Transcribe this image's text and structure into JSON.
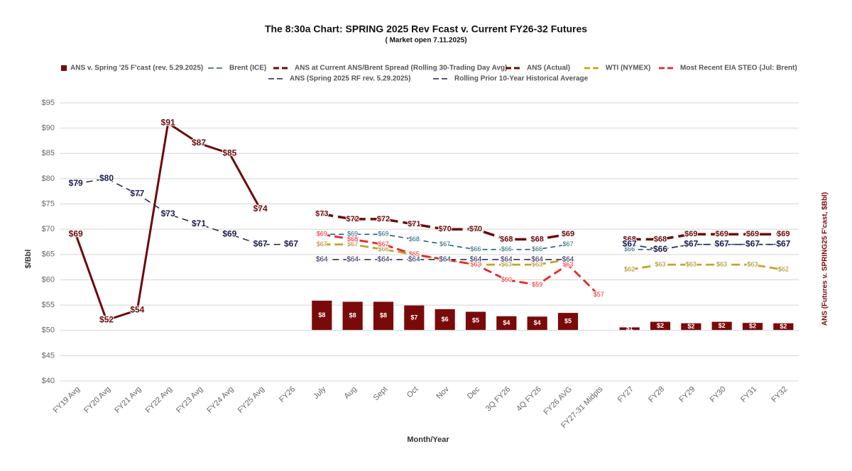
{
  "chart_data": {
    "type": "combo",
    "title": "The 8:30a Chart: SPRING 2025 Rev Fcast v. Current FY26-32 Futures",
    "subtitle": "( Market open 7.11.2025)",
    "x_label": "Month/Year",
    "y_label": "$/Bbl",
    "y2_label": "ANS (Futures v. SPRING25 F'cast, $Bbl)",
    "categories": [
      "FY19 Avg",
      "FY20 Avg",
      "FY21 Avg",
      "FY22 Avg",
      "FY23 Avg",
      "FY24 Avg",
      "FY25 Avg",
      "FY26",
      "July",
      "Aug",
      "Sept",
      "Oct",
      "Nov",
      "Dec",
      "3Q FY26",
      "4Q FY26",
      "FY26 AVG",
      "FY27-31 Midpts",
      "FY27",
      "FY28",
      "FY29",
      "FY30",
      "FY31",
      "FY32"
    ],
    "ylim": [
      40,
      95
    ],
    "yticks": [
      {
        "value": 40,
        "label": "$40"
      },
      {
        "value": 45,
        "label": "$45"
      },
      {
        "value": 50,
        "label": "$50"
      },
      {
        "value": 55,
        "label": "$55"
      },
      {
        "value": 60,
        "label": "$60"
      },
      {
        "value": 65,
        "label": "$65"
      },
      {
        "value": 70,
        "label": "$70"
      },
      {
        "value": 75,
        "label": "$75"
      },
      {
        "value": 80,
        "label": "$80"
      },
      {
        "value": 85,
        "label": "$85"
      },
      {
        "value": 90,
        "label": "$90"
      },
      {
        "value": 95,
        "label": "$95"
      }
    ],
    "y2lim": [
      -13.75,
      61.25
    ],
    "grid": true,
    "legend": "top",
    "series": [
      {
        "name": "ANS v. Spring '25 F'cast (rev. 5.29.2025)",
        "type": "bar",
        "axis": "y2",
        "color": "#7a0a0a",
        "values": [
          null,
          null,
          null,
          null,
          null,
          null,
          null,
          null,
          7.9,
          7.6,
          7.6,
          6.6,
          5.6,
          4.9,
          3.7,
          3.6,
          4.6,
          null,
          0.7,
          2.2,
          1.8,
          2.2,
          1.9,
          1.8
        ],
        "value_labels": [
          null,
          null,
          null,
          null,
          null,
          null,
          null,
          null,
          "$8",
          "$8",
          "$8",
          "$7",
          "$6",
          "$5",
          "$4",
          "$4",
          "$5",
          null,
          "$1",
          "$2",
          "$2",
          "$2",
          "$2",
          "$2"
        ]
      },
      {
        "name": "Brent (ICE)",
        "type": "line",
        "dashed": true,
        "color": "#1f5f7a",
        "values": [
          null,
          null,
          null,
          null,
          null,
          null,
          null,
          null,
          69,
          69,
          69,
          68,
          67,
          66,
          66,
          66,
          67,
          null,
          66,
          66,
          67,
          67,
          67,
          67
        ],
        "value_labels": [
          null,
          null,
          null,
          null,
          null,
          null,
          null,
          null,
          "$69",
          "$69",
          "$69",
          "$68",
          "$67",
          "$66",
          "$66",
          "$66",
          "$67",
          null,
          "$66",
          "$66",
          "$67",
          "$67",
          "$67",
          "$67"
        ]
      },
      {
        "name": "ANS at Current ANS/Brent Spread (Rolling 30-Trading Day Avg)",
        "type": "line",
        "dashed": true,
        "color": "#6b0a0a",
        "values": [
          null,
          null,
          null,
          null,
          null,
          null,
          null,
          null,
          73,
          72,
          72,
          71,
          70,
          70,
          68,
          68,
          69,
          null,
          68,
          68,
          69,
          69,
          69,
          69
        ],
        "value_labels": [
          null,
          null,
          null,
          null,
          null,
          null,
          null,
          null,
          "$73",
          "$72",
          "$72",
          "$71",
          "$70",
          "$70",
          "$68",
          "$68",
          "$69",
          null,
          "$68",
          "$68",
          "$69",
          "$69",
          "$69",
          "$69"
        ]
      },
      {
        "name": "ANS (Actual)",
        "type": "line",
        "dashed": false,
        "color": "#6b0a0a",
        "values": [
          69,
          52,
          54,
          91,
          87,
          85,
          74,
          null,
          null,
          null,
          null,
          null,
          null,
          null,
          null,
          null,
          null,
          null,
          null,
          null,
          null,
          null,
          null,
          null
        ],
        "value_labels": [
          "$69",
          "$52",
          "$54",
          "$91",
          "$87",
          "$85",
          "$74",
          null,
          null,
          null,
          null,
          null,
          null,
          null,
          null,
          null,
          null,
          null,
          null,
          null,
          null,
          null,
          null,
          null
        ]
      },
      {
        "name": "WTI (NYMEX)",
        "type": "line",
        "dashed": true,
        "color": "#c9a227",
        "values": [
          null,
          null,
          null,
          null,
          null,
          null,
          null,
          null,
          67,
          67,
          66,
          65,
          64,
          63,
          63,
          63,
          64,
          null,
          62,
          63,
          63,
          63,
          63,
          62
        ],
        "value_labels": [
          null,
          null,
          null,
          null,
          null,
          null,
          null,
          null,
          "$67",
          "$67",
          "$66",
          "$65",
          "$64",
          "$63",
          "$63",
          "$63",
          "$64",
          null,
          "$62",
          "$63",
          "$63",
          "$63",
          "$63",
          "$62"
        ]
      },
      {
        "name": "Most Recent EIA STEO (Jul: Brent)",
        "type": "line",
        "dashed": true,
        "color": "#e8262a",
        "values": [
          null,
          null,
          null,
          null,
          null,
          null,
          null,
          null,
          69,
          68,
          67,
          65,
          64,
          63,
          60,
          59,
          63,
          57,
          null,
          null,
          null,
          null,
          null,
          null
        ],
        "value_labels": [
          null,
          null,
          null,
          null,
          null,
          null,
          null,
          null,
          "$69",
          "$68",
          "$67",
          "$65",
          "$64",
          "$63",
          "$60",
          "$59",
          "$63",
          "$57",
          null,
          null,
          null,
          null,
          null,
          null
        ]
      },
      {
        "name": "ANS (Spring 2025 RF rev. 5.29.2025)",
        "type": "line",
        "dashed": true,
        "color": "#1c1c50",
        "values": [
          79,
          80,
          77,
          73,
          71,
          69,
          67,
          67,
          null,
          null,
          null,
          null,
          null,
          null,
          null,
          null,
          null,
          null,
          67,
          66,
          67,
          67,
          67,
          67
        ],
        "value_labels": [
          "$79",
          "$80",
          "$77",
          "$73",
          "$71",
          "$69",
          "$67",
          "$67",
          null,
          null,
          null,
          null,
          null,
          null,
          null,
          null,
          null,
          null,
          "$67",
          "$66",
          "$67",
          "$67",
          "$67",
          "$67"
        ]
      },
      {
        "name": "Rolling Prior 10-Year Historical Average",
        "type": "line",
        "dashed": true,
        "color": "#1c1c50",
        "values": [
          null,
          null,
          null,
          null,
          null,
          null,
          null,
          null,
          64,
          64,
          64,
          64,
          64,
          64,
          64,
          64,
          64,
          null,
          null,
          null,
          null,
          null,
          null,
          null
        ],
        "value_labels": [
          null,
          null,
          null,
          null,
          null,
          null,
          null,
          null,
          "$64",
          "$64",
          "$64",
          "$64",
          "$64",
          "$64",
          "$64",
          "$64",
          "$64",
          null,
          null,
          null,
          null,
          null,
          null,
          null
        ]
      }
    ]
  }
}
